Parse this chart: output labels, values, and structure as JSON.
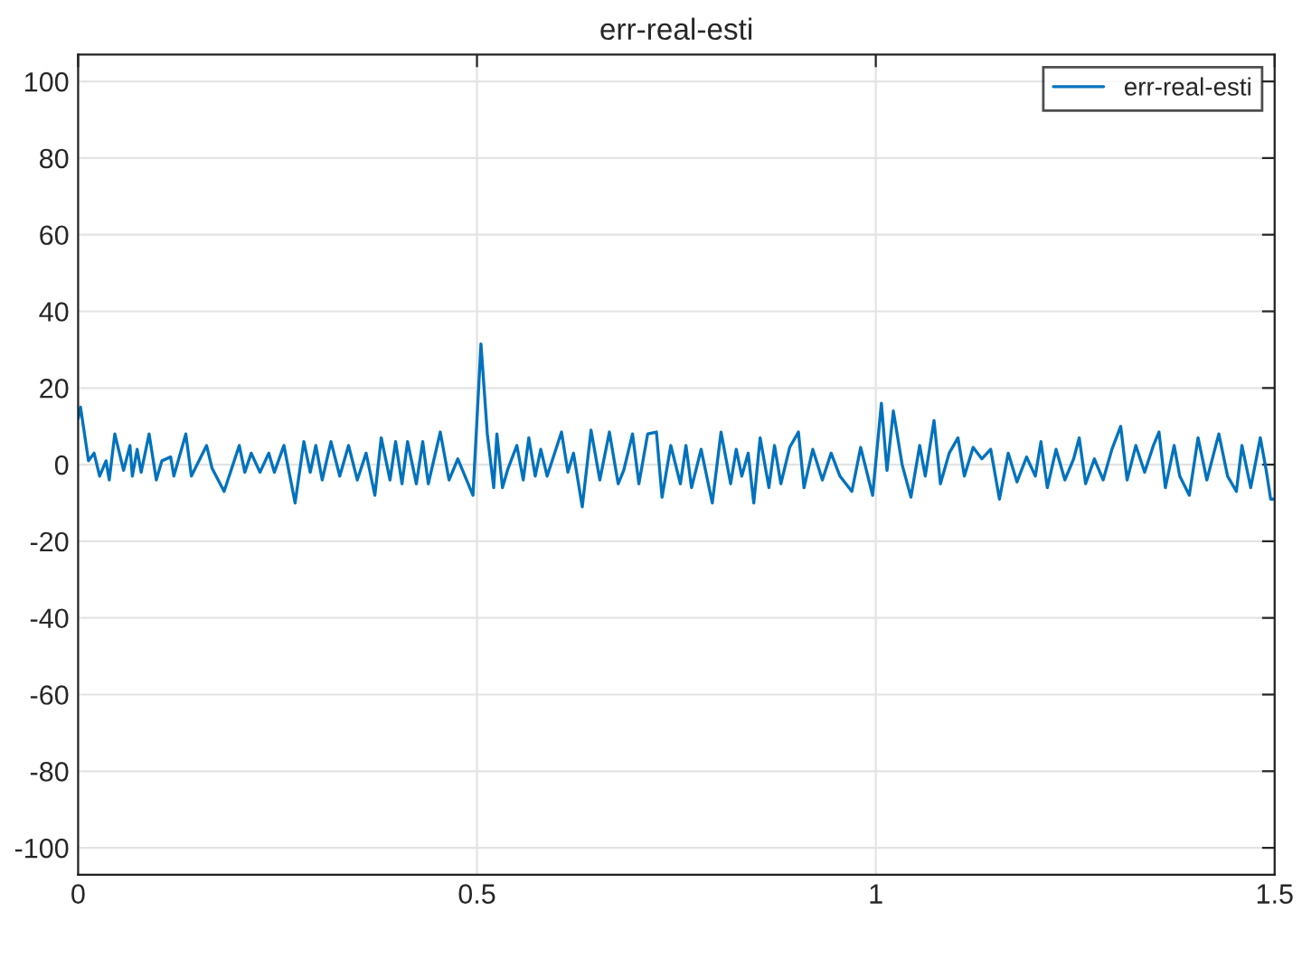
{
  "chart_data": {
    "type": "line",
    "title": "err-real-esti",
    "x": [
      0,
      0.003,
      0.013,
      0.02,
      0.027,
      0.035,
      0.039,
      0.046,
      0.057,
      0.065,
      0.068,
      0.074,
      0.079,
      0.089,
      0.098,
      0.105,
      0.116,
      0.12,
      0.135,
      0.142,
      0.161,
      0.168,
      0.183,
      0.202,
      0.209,
      0.217,
      0.228,
      0.239,
      0.246,
      0.258,
      0.272,
      0.283,
      0.291,
      0.298,
      0.306,
      0.317,
      0.328,
      0.339,
      0.35,
      0.361,
      0.372,
      0.38,
      0.391,
      0.398,
      0.406,
      0.413,
      0.424,
      0.432,
      0.439,
      0.454,
      0.465,
      0.476,
      0.495,
      0.505,
      0.513,
      0.521,
      0.525,
      0.532,
      0.539,
      0.55,
      0.558,
      0.565,
      0.573,
      0.58,
      0.588,
      0.595,
      0.606,
      0.614,
      0.621,
      0.632,
      0.643,
      0.654,
      0.666,
      0.677,
      0.684,
      0.695,
      0.703,
      0.714,
      0.725,
      0.732,
      0.743,
      0.755,
      0.762,
      0.769,
      0.781,
      0.795,
      0.806,
      0.818,
      0.825,
      0.832,
      0.84,
      0.847,
      0.855,
      0.866,
      0.873,
      0.881,
      0.892,
      0.903,
      0.91,
      0.921,
      0.933,
      0.944,
      0.955,
      0.97,
      0.981,
      0.996,
      1.007,
      1.014,
      1.022,
      1.033,
      1.044,
      1.055,
      1.062,
      1.073,
      1.081,
      1.092,
      1.103,
      1.111,
      1.122,
      1.133,
      1.144,
      1.155,
      1.166,
      1.177,
      1.189,
      1.2,
      1.207,
      1.215,
      1.226,
      1.237,
      1.248,
      1.255,
      1.263,
      1.274,
      1.285,
      1.296,
      1.307,
      1.315,
      1.326,
      1.337,
      1.348,
      1.355,
      1.363,
      1.374,
      1.381,
      1.393,
      1.404,
      1.415,
      1.43,
      1.441,
      1.452,
      1.459,
      1.47,
      1.482,
      1.489,
      1.495,
      1.5
    ],
    "series": [
      {
        "name": "err-real-esti",
        "color": "#0072bd",
        "values": [
          12,
          15,
          1,
          3,
          -3,
          1,
          -4,
          8,
          -1.5,
          5,
          -3,
          4,
          -2,
          8,
          -4,
          1,
          2,
          -3,
          8,
          -3,
          5,
          -1,
          -7,
          5,
          -2,
          3,
          -2,
          3,
          -2,
          5,
          -10,
          6,
          -2,
          5,
          -4,
          6,
          -3,
          5,
          -4,
          3,
          -8,
          7,
          -4,
          6,
          -5,
          6,
          -5,
          6,
          -5,
          8.5,
          -4,
          1.5,
          -8,
          31.5,
          8,
          -6,
          8,
          -6,
          -1,
          5,
          -4,
          7,
          -3,
          4,
          -3,
          1.5,
          8.5,
          -2,
          3,
          -11,
          9,
          -4,
          8.5,
          -5,
          -1.5,
          8,
          -5,
          8,
          8.5,
          -8.5,
          5,
          -5,
          5,
          -6,
          4,
          -10,
          8.5,
          -5,
          4,
          -3,
          3,
          -10,
          7,
          -6,
          5,
          -5,
          4.5,
          8.5,
          -6,
          4,
          -4,
          3,
          -3,
          -7,
          4.5,
          -8,
          16,
          -1.5,
          14,
          0,
          -8.5,
          5,
          -3,
          11.5,
          -5,
          3,
          7,
          -3,
          4.5,
          1.5,
          4,
          -9,
          3,
          -4.5,
          2,
          -3,
          6,
          -6,
          4,
          -4,
          1.5,
          7,
          -5,
          1.5,
          -4,
          4,
          10,
          -4,
          5,
          -2,
          5,
          8.5,
          -6,
          5,
          -3,
          -8,
          7,
          -4,
          8,
          -3,
          -7,
          5,
          -6,
          7,
          -1,
          -9,
          -9
        ]
      }
    ],
    "xlim": [
      0,
      1.5
    ],
    "xticks": [
      0,
      0.5,
      1,
      1.5
    ],
    "ylim": [
      -107,
      107
    ],
    "yticks": [
      -100,
      -80,
      -60,
      -40,
      -20,
      0,
      20,
      40,
      60,
      80,
      100
    ],
    "grid": true,
    "legend": "top right"
  }
}
